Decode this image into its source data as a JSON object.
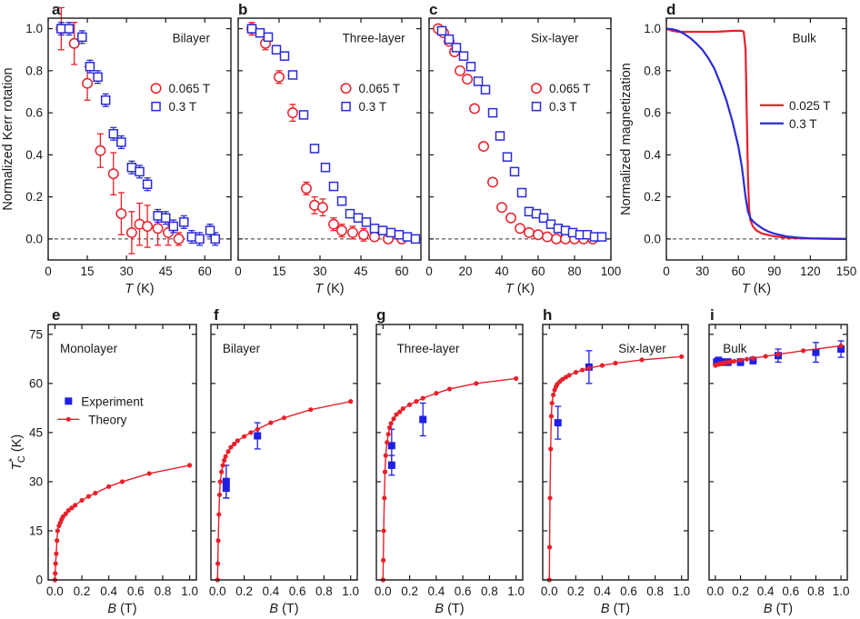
{
  "colors": {
    "red": "#e8202a",
    "blue": "#2b2bd6",
    "blue_marker": "#1f1fe6",
    "axis": "#1a1a1a",
    "zero_line": "#333333"
  },
  "chart_data": [
    {
      "panel": "a",
      "type": "scatter",
      "panel_label": "Bilayer",
      "xlabel": "T (K)",
      "ylabel": "Normalized Kerr rotation",
      "xlim": [
        0,
        70
      ],
      "ylim": [
        -0.1,
        1.05
      ],
      "xticks": [
        0,
        15,
        30,
        45,
        60
      ],
      "yticks": [
        0,
        0.2,
        0.4,
        0.6,
        0.8,
        1.0
      ],
      "zero_line": true,
      "legend": "right",
      "series": [
        {
          "name": "0.065 T",
          "marker": "circle",
          "color": "#e8202a",
          "x": [
            5,
            10,
            15,
            20,
            25,
            28,
            32,
            35,
            38,
            42,
            46,
            50
          ],
          "y": [
            1.0,
            0.93,
            0.74,
            0.42,
            0.31,
            0.12,
            0.03,
            0.07,
            0.06,
            0.05,
            0.03,
            0.0
          ],
          "err": [
            0.1,
            0.1,
            0.08,
            0.08,
            0.1,
            0.1,
            0.1,
            0.1,
            0.1,
            0.08,
            0.06,
            0.03
          ]
        },
        {
          "name": "0.3 T",
          "marker": "square",
          "color": "#2b2bd6",
          "x": [
            5,
            8,
            13,
            16,
            19,
            22,
            25,
            28,
            32,
            35,
            38,
            42,
            45,
            48,
            52,
            55,
            58,
            62,
            64
          ],
          "y": [
            1.0,
            1.0,
            0.96,
            0.82,
            0.77,
            0.66,
            0.5,
            0.46,
            0.34,
            0.32,
            0.26,
            0.11,
            0.1,
            0.06,
            0.08,
            0.01,
            0.0,
            0.04,
            0.0
          ],
          "err": [
            0.03,
            0.03,
            0.03,
            0.03,
            0.03,
            0.03,
            0.03,
            0.03,
            0.03,
            0.03,
            0.03,
            0.03,
            0.03,
            0.03,
            0.03,
            0.03,
            0.03,
            0.03,
            0.03
          ]
        }
      ]
    },
    {
      "panel": "b",
      "type": "scatter",
      "panel_label": "Three-layer",
      "xlabel": "T (K)",
      "ylabel": "",
      "xlim": [
        0,
        67
      ],
      "ylim": [
        -0.1,
        1.05
      ],
      "xticks": [
        0,
        15,
        30,
        45,
        60
      ],
      "yticks": [
        0,
        0.2,
        0.4,
        0.6,
        0.8,
        1.0
      ],
      "zero_line": true,
      "legend": "right",
      "series": [
        {
          "name": "0.065 T",
          "marker": "circle",
          "color": "#e8202a",
          "x": [
            5,
            10,
            15,
            20,
            25,
            28,
            31,
            35,
            38,
            42,
            46,
            50,
            55,
            60
          ],
          "y": [
            1.0,
            0.93,
            0.77,
            0.6,
            0.24,
            0.16,
            0.15,
            0.07,
            0.04,
            0.03,
            0.02,
            0.01,
            0.0,
            0.0
          ],
          "err": [
            0.03,
            0.03,
            0.03,
            0.04,
            0.03,
            0.04,
            0.04,
            0.03,
            0.03,
            0.03,
            0.03,
            0.02,
            0.02,
            0.02
          ]
        },
        {
          "name": "0.3 T",
          "marker": "square",
          "color": "#2b2bd6",
          "x": [
            5,
            8,
            11,
            14,
            17,
            20,
            24,
            28,
            32,
            35,
            38,
            41,
            44,
            47,
            50,
            53,
            56,
            59,
            62,
            65
          ],
          "y": [
            1.0,
            0.98,
            0.96,
            0.9,
            0.87,
            0.78,
            0.59,
            0.43,
            0.34,
            0.25,
            0.18,
            0.12,
            0.1,
            0.08,
            0.05,
            0.04,
            0.03,
            0.02,
            0.01,
            0.0
          ]
        }
      ]
    },
    {
      "panel": "c",
      "type": "scatter",
      "panel_label": "Six-layer",
      "xlabel": "T (K)",
      "ylabel": "",
      "xlim": [
        0,
        100
      ],
      "ylim": [
        -0.1,
        1.05
      ],
      "xticks": [
        0,
        20,
        40,
        60,
        80,
        100
      ],
      "yticks": [
        0,
        0.2,
        0.4,
        0.6,
        0.8,
        1.0
      ],
      "zero_line": true,
      "legend": "right",
      "series": [
        {
          "name": "0.065 T",
          "marker": "circle",
          "color": "#e8202a",
          "x": [
            5,
            8,
            11,
            14,
            17,
            21,
            25,
            30,
            35,
            40,
            45,
            50,
            55,
            60,
            65,
            70,
            75,
            80,
            85,
            90
          ],
          "y": [
            1.0,
            0.98,
            0.94,
            0.89,
            0.8,
            0.76,
            0.62,
            0.44,
            0.27,
            0.15,
            0.1,
            0.05,
            0.03,
            0.02,
            0.01,
            0.0,
            0.0,
            0.0,
            0.0,
            0.0
          ]
        },
        {
          "name": "0.3 T",
          "marker": "square",
          "color": "#2b2bd6",
          "x": [
            7,
            11,
            15,
            19,
            23,
            27,
            31,
            35,
            39,
            43,
            47,
            51,
            55,
            59,
            63,
            67,
            71,
            75,
            79,
            83,
            87,
            91,
            95
          ],
          "y": [
            0.99,
            0.95,
            0.91,
            0.87,
            0.82,
            0.75,
            0.71,
            0.6,
            0.49,
            0.39,
            0.32,
            0.22,
            0.13,
            0.12,
            0.1,
            0.07,
            0.05,
            0.04,
            0.03,
            0.02,
            0.02,
            0.01,
            0.01
          ]
        }
      ]
    },
    {
      "panel": "d",
      "type": "line",
      "panel_label": "Bulk",
      "xlabel": "T (K)",
      "ylabel": "Normalized magnetization",
      "xlim": [
        0,
        150
      ],
      "ylim": [
        -0.1,
        1.05
      ],
      "xticks": [
        0,
        30,
        60,
        90,
        120,
        150
      ],
      "yticks": [
        0.0,
        0.2,
        0.4,
        0.6,
        0.8,
        1.0
      ],
      "zero_line": true,
      "legend": "right",
      "series": [
        {
          "name": "0.025 T",
          "color": "#e8202a",
          "x": [
            0,
            5,
            10,
            20,
            30,
            40,
            50,
            55,
            60,
            63,
            64.5,
            66,
            67,
            68,
            69,
            70,
            72,
            75,
            80,
            90,
            100,
            110,
            120,
            130,
            140,
            150
          ],
          "y": [
            1.0,
            0.99,
            0.985,
            0.985,
            0.985,
            0.985,
            0.988,
            0.99,
            0.99,
            0.99,
            0.985,
            0.9,
            0.6,
            0.3,
            0.14,
            0.09,
            0.06,
            0.04,
            0.025,
            0.012,
            0.006,
            0.003,
            0.002,
            0.001,
            0.0,
            0.0
          ]
        },
        {
          "name": "0.3 T",
          "color": "#2b2bd6",
          "x": [
            0,
            5,
            10,
            15,
            20,
            25,
            30,
            35,
            40,
            45,
            50,
            55,
            60,
            63,
            66,
            68,
            70,
            72,
            75,
            80,
            85,
            90,
            100,
            110,
            120,
            130,
            140,
            150
          ],
          "y": [
            1.0,
            0.998,
            0.99,
            0.975,
            0.955,
            0.93,
            0.9,
            0.86,
            0.81,
            0.74,
            0.66,
            0.56,
            0.44,
            0.34,
            0.2,
            0.13,
            0.1,
            0.085,
            0.07,
            0.05,
            0.035,
            0.025,
            0.012,
            0.006,
            0.003,
            0.002,
            0.001,
            0.0
          ]
        }
      ]
    },
    {
      "panel": "e",
      "type": "line",
      "panel_label": "Monolayer",
      "xlabel": "B (T)",
      "ylabel": "T*C (K)",
      "xlim": [
        -0.05,
        1.05
      ],
      "ylim": [
        0,
        78
      ],
      "xticks": [
        0,
        0.2,
        0.4,
        0.6,
        0.8,
        1.0
      ],
      "yticks": [
        0,
        15,
        30,
        45,
        60,
        75
      ],
      "legend": "left",
      "series": [
        {
          "name": "Experiment",
          "marker": "square",
          "color": "#1f1fe6",
          "x": [],
          "y": []
        },
        {
          "name": "Theory",
          "marker": "dot",
          "color": "#e8202a",
          "x": [
            0,
            0.002,
            0.005,
            0.01,
            0.015,
            0.02,
            0.03,
            0.04,
            0.05,
            0.06,
            0.08,
            0.1,
            0.125,
            0.15,
            0.2,
            0.25,
            0.3,
            0.4,
            0.5,
            0.7,
            1.0
          ],
          "y": [
            0,
            2,
            5,
            8,
            12,
            15,
            16.5,
            17.5,
            18.5,
            19.3,
            20.2,
            21.2,
            22,
            22.8,
            24.3,
            25.5,
            26.5,
            28.5,
            30,
            32.5,
            35
          ]
        }
      ]
    },
    {
      "panel": "f",
      "type": "scatter",
      "panel_label": "Bilayer",
      "xlabel": "B (T)",
      "ylabel": "",
      "xlim": [
        -0.05,
        1.05
      ],
      "ylim": [
        0,
        78
      ],
      "xticks": [
        0,
        0.2,
        0.4,
        0.6,
        0.8,
        1.0
      ],
      "yticks": [
        0,
        15,
        30,
        45,
        60,
        75
      ],
      "series": [
        {
          "name": "Experiment",
          "marker": "square",
          "color": "#1f1fe6",
          "x": [
            0.065,
            0.065,
            0.3
          ],
          "y": [
            28,
            30,
            44
          ],
          "err": [
            3,
            5,
            4
          ]
        },
        {
          "name": "Theory",
          "marker": "dot",
          "color": "#e8202a",
          "x": [
            0,
            0.002,
            0.005,
            0.01,
            0.015,
            0.02,
            0.03,
            0.04,
            0.05,
            0.06,
            0.08,
            0.1,
            0.125,
            0.15,
            0.2,
            0.25,
            0.3,
            0.4,
            0.5,
            0.7,
            1.0
          ],
          "y": [
            0,
            5,
            12,
            20,
            26,
            30,
            33,
            35,
            36.5,
            37.7,
            39.2,
            40.5,
            41.5,
            42.5,
            43.8,
            45,
            46,
            48,
            49.5,
            52,
            54.5
          ]
        }
      ]
    },
    {
      "panel": "g",
      "type": "scatter",
      "panel_label": "Three-layer",
      "xlabel": "B (T)",
      "ylabel": "",
      "xlim": [
        -0.05,
        1.05
      ],
      "ylim": [
        0,
        78
      ],
      "xticks": [
        0,
        0.2,
        0.4,
        0.6,
        0.8,
        1.0
      ],
      "yticks": [
        0,
        15,
        30,
        45,
        60,
        75
      ],
      "series": [
        {
          "name": "Experiment",
          "marker": "square",
          "color": "#1f1fe6",
          "x": [
            0.065,
            0.065,
            0.3
          ],
          "y": [
            35,
            41,
            49
          ],
          "err": [
            3,
            5,
            5
          ]
        },
        {
          "name": "Theory",
          "marker": "dot",
          "color": "#e8202a",
          "x": [
            0,
            0.002,
            0.005,
            0.01,
            0.015,
            0.02,
            0.03,
            0.04,
            0.05,
            0.06,
            0.08,
            0.1,
            0.125,
            0.15,
            0.2,
            0.25,
            0.3,
            0.4,
            0.5,
            0.7,
            1.0
          ],
          "y": [
            0,
            6,
            15,
            25,
            33,
            38,
            42,
            44.5,
            46.5,
            47.8,
            49.2,
            50.5,
            51.3,
            52.3,
            53.5,
            54.5,
            55.5,
            57,
            58.3,
            60,
            61.5
          ]
        }
      ]
    },
    {
      "panel": "h",
      "type": "scatter",
      "panel_label": "Six-layer",
      "xlabel": "B (T)",
      "ylabel": "",
      "xlim": [
        -0.05,
        1.05
      ],
      "ylim": [
        0,
        78
      ],
      "xticks": [
        0,
        0.2,
        0.4,
        0.6,
        0.8,
        1.0
      ],
      "yticks": [
        0,
        15,
        30,
        45,
        60,
        75
      ],
      "series": [
        {
          "name": "Experiment",
          "marker": "square",
          "color": "#1f1fe6",
          "x": [
            0.065,
            0.3
          ],
          "y": [
            48,
            65
          ],
          "err": [
            5,
            5
          ]
        },
        {
          "name": "Theory",
          "marker": "dot",
          "color": "#e8202a",
          "x": [
            0,
            0.002,
            0.005,
            0.01,
            0.015,
            0.02,
            0.03,
            0.04,
            0.05,
            0.06,
            0.08,
            0.1,
            0.125,
            0.15,
            0.2,
            0.25,
            0.3,
            0.4,
            0.5,
            0.7,
            1.0
          ],
          "y": [
            0,
            10,
            25,
            40,
            50,
            54,
            56.5,
            58,
            59,
            59.8,
            60.6,
            61.3,
            61.9,
            62.5,
            63.4,
            64.1,
            64.7,
            65.5,
            66.2,
            67.2,
            68.2
          ]
        }
      ]
    },
    {
      "panel": "i",
      "type": "scatter",
      "panel_label": "Bulk",
      "xlabel": "B (T)",
      "ylabel": "",
      "xlim": [
        -0.05,
        1.05
      ],
      "ylim": [
        0,
        78
      ],
      "xticks": [
        0,
        0.2,
        0.4,
        0.6,
        0.8,
        1.0
      ],
      "yticks": [
        0,
        15,
        30,
        45,
        60,
        75
      ],
      "series": [
        {
          "name": "Experiment",
          "marker": "square",
          "color": "#1f1fe6",
          "x": [
            0.01,
            0.025,
            0.05,
            0.1,
            0.2,
            0.3,
            0.5,
            0.8,
            1.0
          ],
          "y": [
            66.5,
            67,
            66.5,
            66.5,
            66.5,
            67,
            68.5,
            69.5,
            70.5
          ],
          "err": [
            1,
            1,
            1,
            1,
            1,
            1,
            2,
            3,
            2.5
          ]
        },
        {
          "name": "Theory",
          "marker": "dot",
          "color": "#e8202a",
          "x": [
            0,
            0.005,
            0.01,
            0.02,
            0.03,
            0.04,
            0.05,
            0.06,
            0.08,
            0.1,
            0.125,
            0.15,
            0.2,
            0.25,
            0.3,
            0.4,
            0.5,
            0.7,
            1.0
          ],
          "y": [
            65.5,
            65.6,
            65.7,
            65.8,
            65.9,
            66,
            66.1,
            66.2,
            66.3,
            66.5,
            66.6,
            66.8,
            67.1,
            67.4,
            67.7,
            68.3,
            68.9,
            70,
            71.5
          ]
        }
      ]
    }
  ]
}
